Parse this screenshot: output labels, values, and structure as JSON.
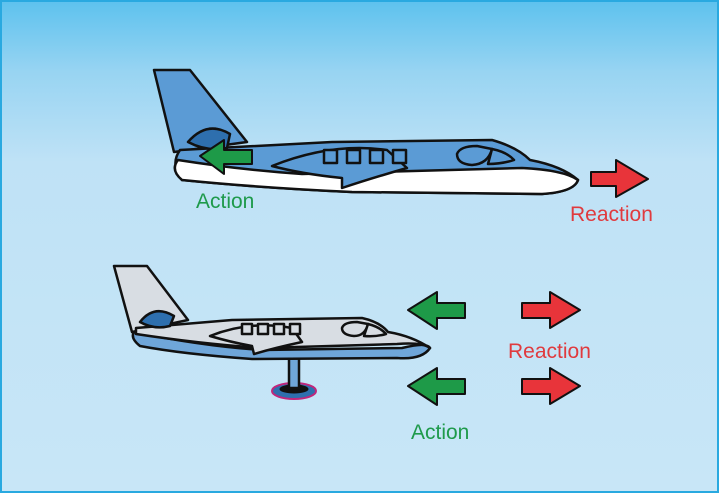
{
  "diagram": {
    "colors": {
      "action_arrow": "#1e9a48",
      "reaction_arrow": "#e8343a",
      "action_text": "#1e9a4b",
      "reaction_text": "#e03a3e",
      "plane_blue": "#5b9bd5",
      "plane_white": "#ffffff",
      "plane_grey": "#d8dde3",
      "outline": "#111111"
    },
    "top_jet": {
      "action_label": "Action",
      "reaction_label": "Reaction"
    },
    "mounted_jet": {
      "action_label": "Action",
      "reaction_label": "Reaction"
    }
  }
}
